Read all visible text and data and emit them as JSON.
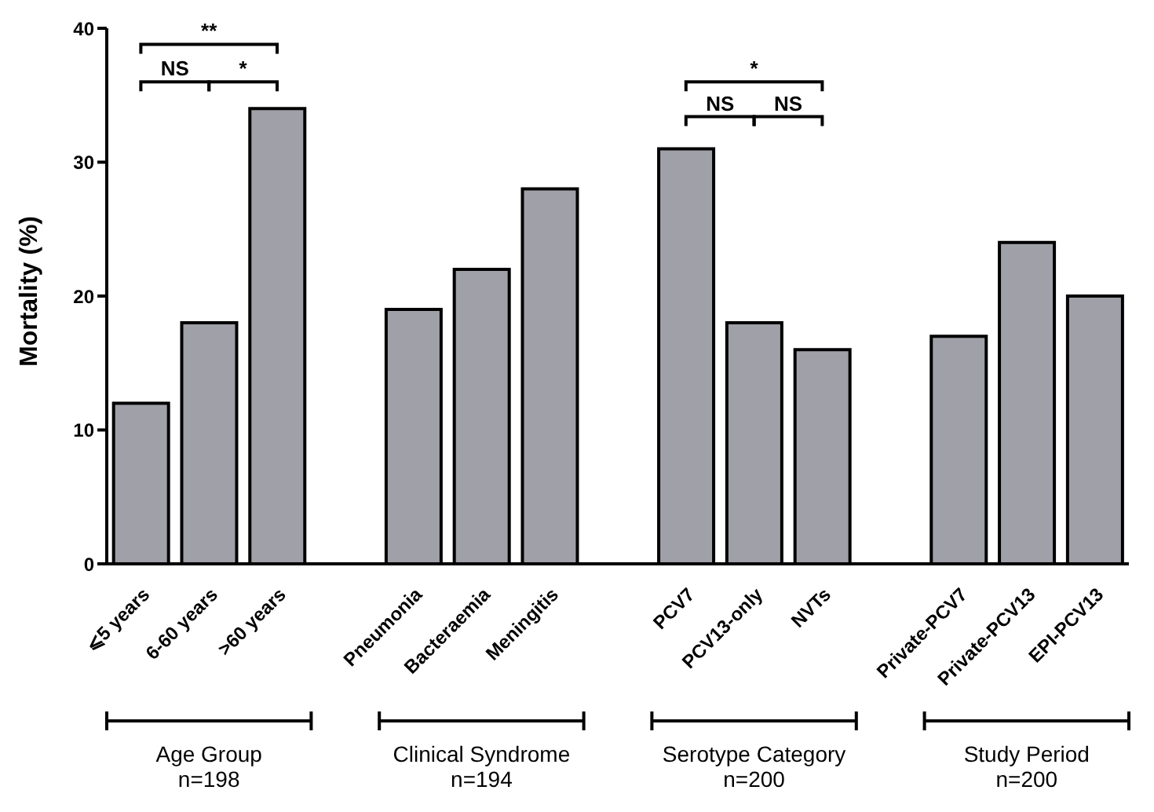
{
  "chart_data": {
    "type": "bar",
    "ylabel": "Mortality (%)",
    "categories": [
      "⩽5 years",
      "6-60 years",
      ">60 years",
      null,
      "Pneumonia",
      "Bacteraemia",
      "Meningitis",
      null,
      "PCV7",
      "PCV13-only",
      "NVTs",
      null,
      "Private-PCV7",
      "Private-PCV13",
      "EPI-PCV13"
    ],
    "values": [
      12,
      18,
      34,
      null,
      19,
      22,
      28,
      null,
      31,
      18,
      16,
      null,
      17,
      24,
      20
    ],
    "color": "#a0a0a8",
    "ylim": [
      0,
      40
    ],
    "yticks": [
      0,
      10,
      20,
      30,
      40
    ],
    "annotations": [
      "**",
      "NS",
      "*",
      "*",
      "NS",
      "NS",
      "Age Group\nn=198",
      "Clinical Syndrome\nn=194",
      "Serotype Category\nn=200",
      "Study Period\nn=200"
    ]
  }
}
